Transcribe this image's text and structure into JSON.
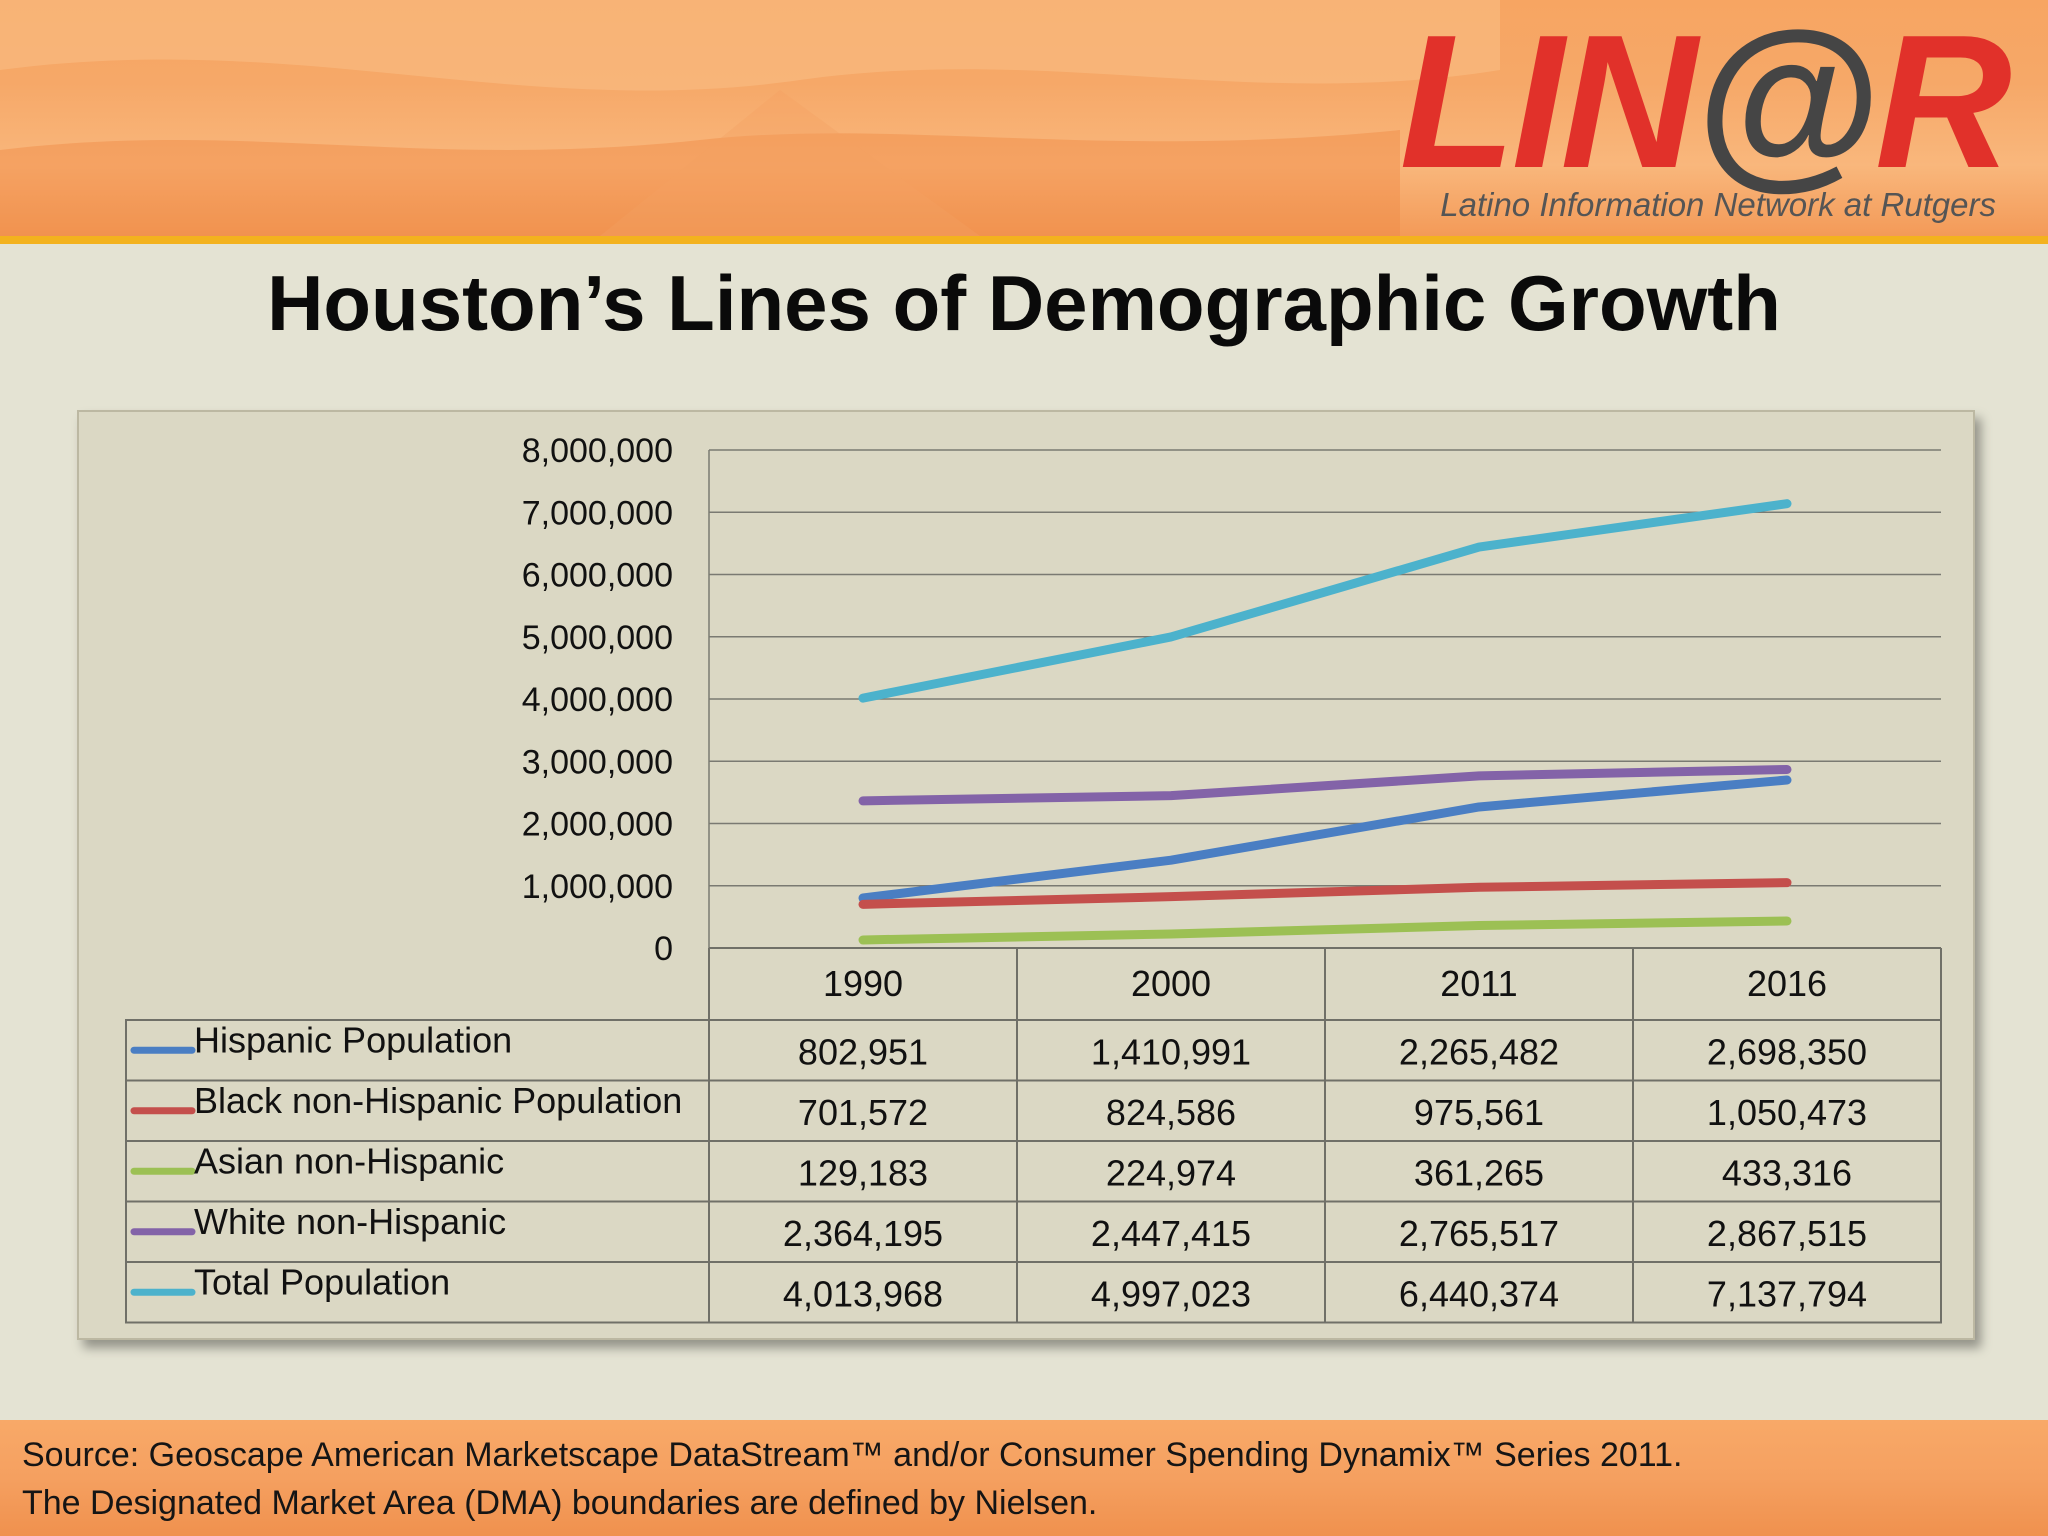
{
  "header": {
    "logo_text": "LIN@R",
    "logo_tagline": "Latino Information Network at Rutgers",
    "title": "Houston’s Lines of Demographic Growth"
  },
  "footer": {
    "line1": "Source: Geoscape American Marketscape DataStream™ and/or Consumer Spending Dynamix™ Series 2011.",
    "line2": "The Designated Market Area (DMA) boundaries are defined by Nielsen."
  },
  "chart_data": {
    "type": "line",
    "title": "",
    "xlabel": "",
    "ylabel": "",
    "categories": [
      "1990",
      "2000",
      "2011",
      "2016"
    ],
    "ylim": [
      0,
      8000000
    ],
    "yticks": [
      "0",
      "1,000,000",
      "2,000,000",
      "3,000,000",
      "4,000,000",
      "5,000,000",
      "6,000,000",
      "7,000,000",
      "8,000,000"
    ],
    "grid": true,
    "legend": "data-table",
    "series": [
      {
        "name": "Hispanic Population",
        "color": "#4a7ec3",
        "values": [
          802951,
          1410991,
          2265482,
          2698350
        ],
        "labels": [
          "802,951",
          "1,410,991",
          "2,265,482",
          "2,698,350"
        ]
      },
      {
        "name": "Black non-Hispanic Population",
        "color": "#c44f4c",
        "values": [
          701572,
          824586,
          975561,
          1050473
        ],
        "labels": [
          "701,572",
          "824,586",
          "975,561",
          "1,050,473"
        ]
      },
      {
        "name": "Asian non-Hispanic",
        "color": "#9cc054",
        "values": [
          129183,
          224974,
          361265,
          433316
        ],
        "labels": [
          "129,183",
          "224,974",
          "361,265",
          "433,316"
        ]
      },
      {
        "name": "White non-Hispanic",
        "color": "#8363a8",
        "values": [
          2364195,
          2447415,
          2765517,
          2867515
        ],
        "labels": [
          "2,364,195",
          "2,447,415",
          "2,765,517",
          "2,867,515"
        ]
      },
      {
        "name": "Total Population",
        "color": "#4cb2cc",
        "values": [
          4013968,
          4997023,
          6440374,
          7137794
        ],
        "labels": [
          "4,013,968",
          "4,997,023",
          "6,440,374",
          "7,137,794"
        ]
      }
    ]
  }
}
